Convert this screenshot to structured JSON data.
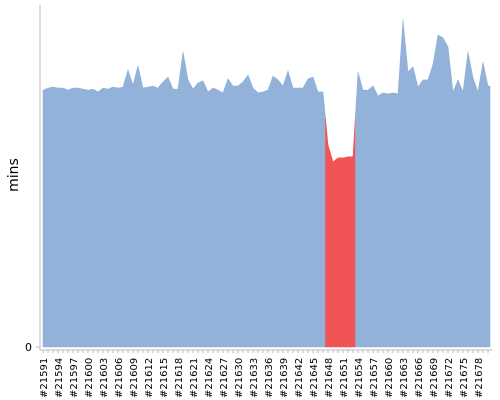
{
  "chart_data": {
    "type": "area",
    "y_label": "mins",
    "categories": [
      "#21591",
      null,
      null,
      "#21594",
      null,
      null,
      "#21597",
      null,
      null,
      "#21600",
      null,
      null,
      "#21603",
      null,
      null,
      "#21606",
      null,
      null,
      "#21609",
      null,
      null,
      "#21612",
      null,
      null,
      "#21615",
      null,
      null,
      "#21618",
      null,
      null,
      "#21621",
      null,
      null,
      "#21624",
      null,
      null,
      "#21627",
      null,
      null,
      "#21630",
      null,
      null,
      "#21633",
      null,
      null,
      "#21636",
      null,
      null,
      "#21639",
      null,
      null,
      "#21642",
      null,
      null,
      "#21645",
      null,
      null,
      "#21648",
      null,
      null,
      "#21651",
      null,
      null,
      "#21654",
      null,
      null,
      "#21657",
      null,
      null,
      "#21660",
      null,
      null,
      "#21663",
      null,
      null,
      "#21666",
      null,
      null,
      "#21669",
      null,
      null,
      "#21672",
      null,
      null,
      "#21675",
      null,
      null,
      "#21678",
      null,
      null
    ],
    "values": [
      75.1,
      75.7,
      76.0,
      75.7,
      75.7,
      75.1,
      75.7,
      75.7,
      75.4,
      75.1,
      75.4,
      74.6,
      75.7,
      75.4,
      76.0,
      75.7,
      76.0,
      81.0,
      76.6,
      82.2,
      75.7,
      76.0,
      76.3,
      75.7,
      77.5,
      78.9,
      75.4,
      75.4,
      86.3,
      78.1,
      75.4,
      77.2,
      77.8,
      74.6,
      75.7,
      75.1,
      74.3,
      78.4,
      76.3,
      76.3,
      77.5,
      79.5,
      75.7,
      74.3,
      74.6,
      75.1,
      79.2,
      78.1,
      76.3,
      80.7,
      75.7,
      75.7,
      75.7,
      78.4,
      78.9,
      74.6,
      74.6,
      59.1,
      54.1,
      55.3,
      55.3,
      55.6,
      55.6,
      80.4,
      75.1,
      75.1,
      76.3,
      73.4,
      74.3,
      74.0,
      74.3,
      74.0,
      95.6,
      80.4,
      81.9,
      76.0,
      78.1,
      78.1,
      82.7,
      91.2,
      90.4,
      87.7,
      74.6,
      78.1,
      74.6,
      86.3,
      78.7,
      74.6,
      83.3,
      76.3
    ],
    "point_colors": [
      "#92b2da",
      "#92b2da",
      "#92b2da",
      "#92b2da",
      "#92b2da",
      "#92b2da",
      "#92b2da",
      "#92b2da",
      "#92b2da",
      "#92b2da",
      "#92b2da",
      "#92b2da",
      "#92b2da",
      "#92b2da",
      "#92b2da",
      "#92b2da",
      "#92b2da",
      "#92b2da",
      "#92b2da",
      "#92b2da",
      "#92b2da",
      "#92b2da",
      "#92b2da",
      "#92b2da",
      "#92b2da",
      "#92b2da",
      "#92b2da",
      "#92b2da",
      "#92b2da",
      "#92b2da",
      "#92b2da",
      "#92b2da",
      "#92b2da",
      "#92b2da",
      "#92b2da",
      "#92b2da",
      "#92b2da",
      "#92b2da",
      "#92b2da",
      "#92b2da",
      "#92b2da",
      "#92b2da",
      "#92b2da",
      "#92b2da",
      "#92b2da",
      "#92b2da",
      "#92b2da",
      "#92b2da",
      "#92b2da",
      "#92b2da",
      "#92b2da",
      "#92b2da",
      "#92b2da",
      "#92b2da",
      "#92b2da",
      "#92b2da",
      "#92b2da",
      "#f05454",
      "#f05454",
      "#f05454",
      "#f05454",
      "#f05454",
      "#f05454",
      "#92b2da",
      "#92b2da",
      "#92b2da",
      "#92b2da",
      "#92b2da",
      "#92b2da",
      "#92b2da",
      "#92b2da",
      "#92b2da",
      "#92b2da",
      "#92b2da",
      "#92b2da",
      "#92b2da",
      "#92b2da",
      "#92b2da",
      "#92b2da",
      "#92b2da",
      "#92b2da",
      "#92b2da",
      "#92b2da",
      "#92b2da",
      "#92b2da",
      "#92b2da",
      "#92b2da",
      "#92b2da",
      "#92b2da",
      "#92b2da"
    ],
    "ylim": [
      0,
      100
    ],
    "yticks": [
      0
    ]
  }
}
